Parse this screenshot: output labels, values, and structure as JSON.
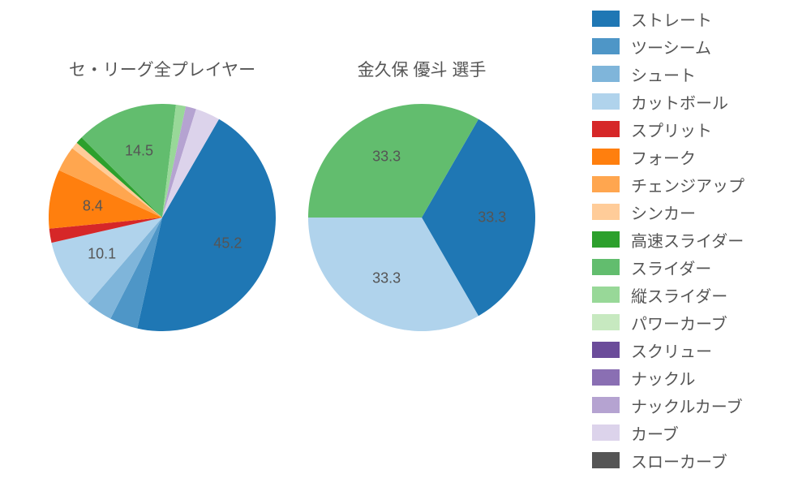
{
  "background_color": "#ffffff",
  "text_color": "#555555",
  "title_fontsize": 21,
  "label_fontsize": 18,
  "legend_fontsize": 20,
  "pitch_types": [
    {
      "key": "straight",
      "label": "ストレート",
      "color": "#1f77b4"
    },
    {
      "key": "twoseam",
      "label": "ツーシーム",
      "color": "#4e96c7"
    },
    {
      "key": "shoot",
      "label": "シュート",
      "color": "#7fb5da"
    },
    {
      "key": "cutball",
      "label": "カットボール",
      "color": "#b0d3ec"
    },
    {
      "key": "split",
      "label": "スプリット",
      "color": "#d62728"
    },
    {
      "key": "fork",
      "label": "フォーク",
      "color": "#ff7f0e"
    },
    {
      "key": "changeup",
      "label": "チェンジアップ",
      "color": "#ffa64f"
    },
    {
      "key": "sinker",
      "label": "シンカー",
      "color": "#ffcc99"
    },
    {
      "key": "hspeed_slider",
      "label": "高速スライダー",
      "color": "#2ca02c"
    },
    {
      "key": "slider",
      "label": "スライダー",
      "color": "#62bd6e"
    },
    {
      "key": "v_slider",
      "label": "縦スライダー",
      "color": "#98d898"
    },
    {
      "key": "power_curve",
      "label": "パワーカーブ",
      "color": "#c7e9c0"
    },
    {
      "key": "screw",
      "label": "スクリュー",
      "color": "#6b4c9a"
    },
    {
      "key": "knuckle",
      "label": "ナックル",
      "color": "#8a6fb3"
    },
    {
      "key": "knuckle_curve",
      "label": "ナックルカーブ",
      "color": "#b5a3d1"
    },
    {
      "key": "curve",
      "label": "カーブ",
      "color": "#dcd3eb"
    },
    {
      "key": "slow_curve",
      "label": "スローカーブ",
      "color": "#555555"
    }
  ],
  "charts": [
    {
      "title": "セ・リーグ全プレイヤー",
      "type": "pie",
      "radius": 140,
      "start_angle_deg": 60,
      "direction": "clockwise",
      "slices": [
        {
          "key": "straight",
          "value": 45.2,
          "show_label": true
        },
        {
          "key": "twoseam",
          "value": 4.0,
          "show_label": false
        },
        {
          "key": "shoot",
          "value": 3.8,
          "show_label": false
        },
        {
          "key": "cutball",
          "value": 10.1,
          "show_label": true
        },
        {
          "key": "split",
          "value": 2.0,
          "show_label": false
        },
        {
          "key": "fork",
          "value": 8.4,
          "show_label": true
        },
        {
          "key": "changeup",
          "value": 3.6,
          "show_label": false
        },
        {
          "key": "sinker",
          "value": 1.0,
          "show_label": false
        },
        {
          "key": "hspeed_slider",
          "value": 1.0,
          "show_label": false
        },
        {
          "key": "slider",
          "value": 14.5,
          "show_label": true
        },
        {
          "key": "v_slider",
          "value": 1.4,
          "show_label": false
        },
        {
          "key": "knuckle_curve",
          "value": 1.5,
          "show_label": false
        },
        {
          "key": "curve",
          "value": 3.5,
          "show_label": false
        }
      ]
    },
    {
      "title": "金久保 優斗  選手",
      "type": "pie",
      "radius": 140,
      "start_angle_deg": 60,
      "direction": "clockwise",
      "slices": [
        {
          "key": "straight",
          "value": 33.3,
          "show_label": true
        },
        {
          "key": "cutball",
          "value": 33.3,
          "show_label": true
        },
        {
          "key": "slider",
          "value": 33.3,
          "show_label": true
        }
      ]
    }
  ]
}
